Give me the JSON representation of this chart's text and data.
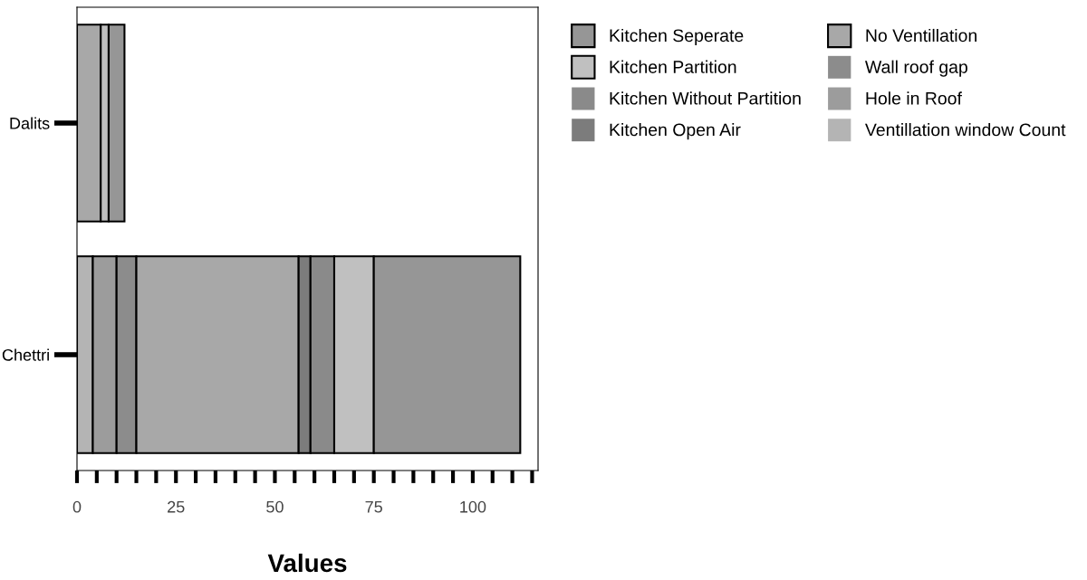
{
  "chart_data": {
    "type": "bar",
    "orientation": "horizontal",
    "stacked": true,
    "xlabel": "Values",
    "categories": [
      "Dalits",
      "Chettri"
    ],
    "series": [
      {
        "name": "Ventillation window Count",
        "color": "#b4b4b4",
        "values": [
          0,
          4
        ]
      },
      {
        "name": "Hole in Roof",
        "color": "#9c9c9c",
        "values": [
          0,
          6
        ]
      },
      {
        "name": "Wall roof gap",
        "color": "#8c8c8c",
        "values": [
          0,
          5
        ]
      },
      {
        "name": "No Ventillation",
        "color": "#a8a8a8",
        "values": [
          6,
          41
        ]
      },
      {
        "name": "Kitchen Open Air",
        "color": "#7c7c7c",
        "values": [
          0,
          3
        ]
      },
      {
        "name": "Kitchen Without Partition",
        "color": "#8a8a8a",
        "values": [
          0,
          6
        ]
      },
      {
        "name": "Kitchen Partition",
        "color": "#c0c0c0",
        "values": [
          2,
          10
        ]
      },
      {
        "name": "Kitchen Seperate",
        "color": "#969696",
        "values": [
          4,
          37
        ]
      }
    ],
    "xlim": [
      0,
      116.5
    ],
    "xticks": [
      0,
      {
        "value": 5,
        "label": null
      },
      {
        "value": 10,
        "label": null
      },
      {
        "value": 15,
        "label": null
      },
      {
        "value": 20,
        "label": null
      },
      25,
      {
        "value": 30,
        "label": null
      },
      {
        "value": 35,
        "label": null
      },
      {
        "value": 40,
        "label": null
      },
      {
        "value": 45,
        "label": null
      },
      50,
      {
        "value": 55,
        "label": null
      },
      {
        "value": 60,
        "label": null
      },
      {
        "value": 65,
        "label": null
      },
      {
        "value": 70,
        "label": null
      },
      75,
      {
        "value": 80,
        "label": null
      },
      {
        "value": 85,
        "label": null
      },
      {
        "value": 90,
        "label": null
      },
      {
        "value": 95,
        "label": null
      },
      100,
      {
        "value": 105,
        "label": null
      },
      {
        "value": 110,
        "label": null
      },
      {
        "value": 115,
        "label": null
      }
    ],
    "grid": false,
    "legend": "top right"
  }
}
